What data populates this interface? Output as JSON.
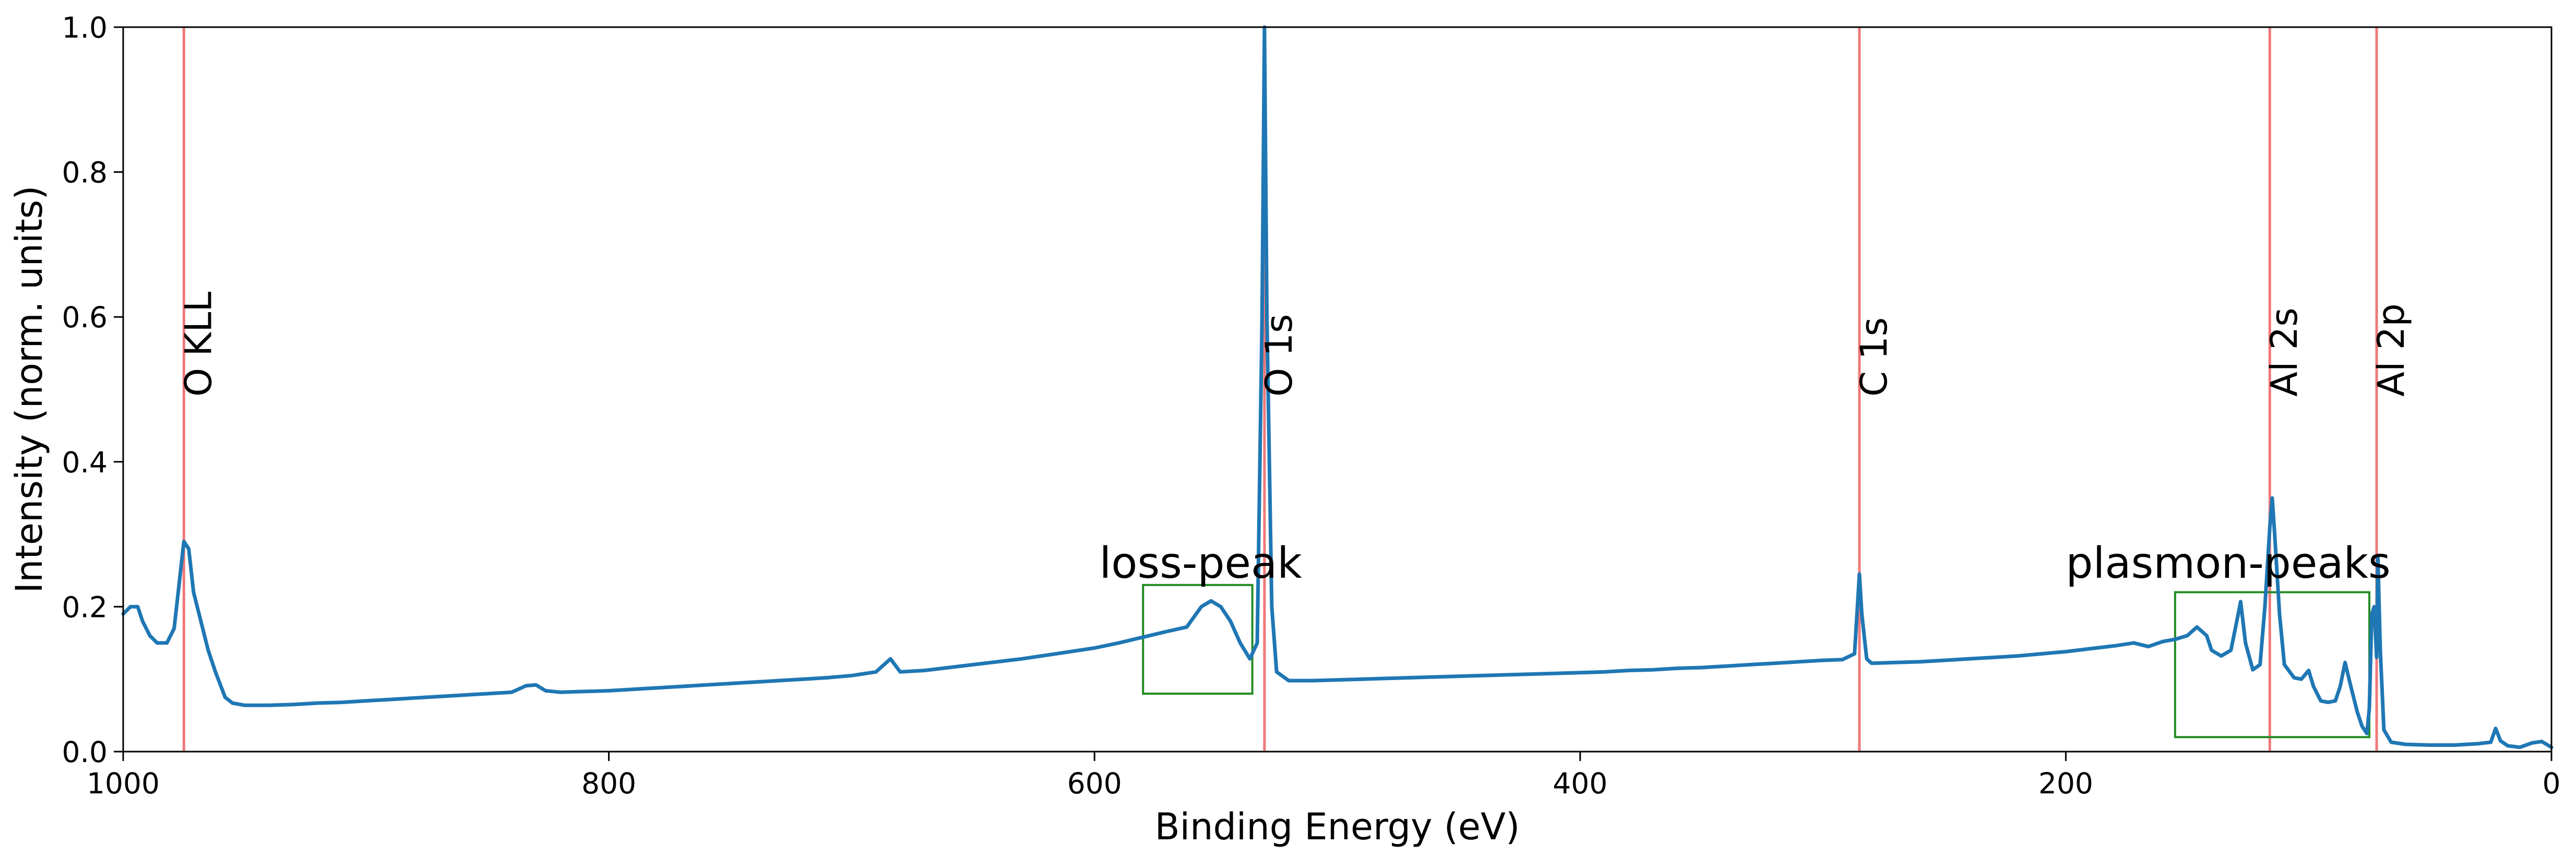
{
  "chart_data": {
    "type": "line",
    "title": "",
    "xlabel": "Binding Energy (eV)",
    "ylabel": "Intensity (norm. units)",
    "xlim": [
      1000,
      0
    ],
    "ylim": [
      0,
      1.0
    ],
    "x_reversed": true,
    "xticks": [
      1000,
      800,
      600,
      400,
      200,
      0
    ],
    "xtick_labels": [
      "1000",
      "800",
      "600",
      "400",
      "200",
      "0"
    ],
    "yticks": [
      0.0,
      0.2,
      0.4,
      0.6,
      0.8,
      1.0
    ],
    "ytick_labels": [
      "0.0",
      "0.2",
      "0.4",
      "0.6",
      "0.8",
      "1.0"
    ],
    "grid": false,
    "series": [
      {
        "color": "#1f77b4",
        "points": [
          [
            1000,
            0.19
          ],
          [
            997,
            0.2
          ],
          [
            994,
            0.2
          ],
          [
            992,
            0.18
          ],
          [
            989,
            0.16
          ],
          [
            986,
            0.15
          ],
          [
            982,
            0.15
          ],
          [
            979,
            0.17
          ],
          [
            977,
            0.23
          ],
          [
            975,
            0.29
          ],
          [
            973,
            0.28
          ],
          [
            971,
            0.22
          ],
          [
            968,
            0.18
          ],
          [
            965,
            0.14
          ],
          [
            962,
            0.11
          ],
          [
            958,
            0.075
          ],
          [
            955,
            0.067
          ],
          [
            950,
            0.064
          ],
          [
            940,
            0.064
          ],
          [
            930,
            0.065
          ],
          [
            920,
            0.067
          ],
          [
            910,
            0.068
          ],
          [
            900,
            0.07
          ],
          [
            890,
            0.072
          ],
          [
            880,
            0.074
          ],
          [
            870,
            0.076
          ],
          [
            860,
            0.078
          ],
          [
            850,
            0.08
          ],
          [
            840,
            0.082
          ],
          [
            834,
            0.091
          ],
          [
            830,
            0.092
          ],
          [
            826,
            0.084
          ],
          [
            820,
            0.082
          ],
          [
            810,
            0.083
          ],
          [
            800,
            0.084
          ],
          [
            790,
            0.086
          ],
          [
            780,
            0.088
          ],
          [
            770,
            0.09
          ],
          [
            760,
            0.092
          ],
          [
            750,
            0.094
          ],
          [
            740,
            0.096
          ],
          [
            730,
            0.098
          ],
          [
            720,
            0.1
          ],
          [
            710,
            0.102
          ],
          [
            700,
            0.105
          ],
          [
            690,
            0.11
          ],
          [
            684,
            0.128
          ],
          [
            680,
            0.11
          ],
          [
            670,
            0.112
          ],
          [
            660,
            0.116
          ],
          [
            650,
            0.12
          ],
          [
            640,
            0.124
          ],
          [
            630,
            0.128
          ],
          [
            620,
            0.133
          ],
          [
            610,
            0.138
          ],
          [
            600,
            0.143
          ],
          [
            590,
            0.15
          ],
          [
            580,
            0.158
          ],
          [
            570,
            0.166
          ],
          [
            562,
            0.172
          ],
          [
            556,
            0.2
          ],
          [
            552,
            0.208
          ],
          [
            548,
            0.2
          ],
          [
            544,
            0.18
          ],
          [
            540,
            0.15
          ],
          [
            536,
            0.128
          ],
          [
            533,
            0.15
          ],
          [
            531,
            0.6
          ],
          [
            530,
            1.0
          ],
          [
            529,
            0.6
          ],
          [
            527,
            0.2
          ],
          [
            525,
            0.11
          ],
          [
            520,
            0.098
          ],
          [
            510,
            0.098
          ],
          [
            500,
            0.099
          ],
          [
            490,
            0.1
          ],
          [
            480,
            0.101
          ],
          [
            470,
            0.102
          ],
          [
            460,
            0.103
          ],
          [
            450,
            0.104
          ],
          [
            440,
            0.105
          ],
          [
            430,
            0.106
          ],
          [
            420,
            0.107
          ],
          [
            410,
            0.108
          ],
          [
            400,
            0.109
          ],
          [
            390,
            0.11
          ],
          [
            380,
            0.112
          ],
          [
            370,
            0.113
          ],
          [
            360,
            0.115
          ],
          [
            350,
            0.116
          ],
          [
            340,
            0.118
          ],
          [
            330,
            0.12
          ],
          [
            320,
            0.122
          ],
          [
            310,
            0.124
          ],
          [
            300,
            0.126
          ],
          [
            292,
            0.127
          ],
          [
            287,
            0.135
          ],
          [
            285,
            0.245
          ],
          [
            284,
            0.19
          ],
          [
            282,
            0.128
          ],
          [
            280,
            0.122
          ],
          [
            270,
            0.123
          ],
          [
            260,
            0.124
          ],
          [
            250,
            0.126
          ],
          [
            240,
            0.128
          ],
          [
            230,
            0.13
          ],
          [
            220,
            0.132
          ],
          [
            210,
            0.135
          ],
          [
            200,
            0.138
          ],
          [
            190,
            0.142
          ],
          [
            180,
            0.146
          ],
          [
            172,
            0.15
          ],
          [
            166,
            0.145
          ],
          [
            160,
            0.152
          ],
          [
            155,
            0.155
          ],
          [
            150,
            0.16
          ],
          [
            146,
            0.172
          ],
          [
            142,
            0.16
          ],
          [
            140,
            0.14
          ],
          [
            136,
            0.132
          ],
          [
            132,
            0.14
          ],
          [
            129,
            0.19
          ],
          [
            128,
            0.207
          ],
          [
            126,
            0.15
          ],
          [
            123,
            0.113
          ],
          [
            120,
            0.12
          ],
          [
            118,
            0.2
          ],
          [
            116,
            0.31
          ],
          [
            115,
            0.35
          ],
          [
            114,
            0.3
          ],
          [
            112,
            0.19
          ],
          [
            110,
            0.12
          ],
          [
            106,
            0.102
          ],
          [
            103,
            0.1
          ],
          [
            100,
            0.112
          ],
          [
            98,
            0.09
          ],
          [
            95,
            0.07
          ],
          [
            92,
            0.068
          ],
          [
            89,
            0.07
          ],
          [
            87,
            0.09
          ],
          [
            85,
            0.123
          ],
          [
            83,
            0.095
          ],
          [
            80,
            0.055
          ],
          [
            78,
            0.035
          ],
          [
            76,
            0.025
          ],
          [
            75,
            0.06
          ],
          [
            74,
            0.19
          ],
          [
            73,
            0.2
          ],
          [
            72,
            0.13
          ],
          [
            71.5,
            0.27
          ],
          [
            70.5,
            0.14
          ],
          [
            69,
            0.03
          ],
          [
            66,
            0.013
          ],
          [
            60,
            0.01
          ],
          [
            50,
            0.009
          ],
          [
            40,
            0.009
          ],
          [
            30,
            0.011
          ],
          [
            25,
            0.013
          ],
          [
            23,
            0.032
          ],
          [
            21,
            0.015
          ],
          [
            18,
            0.008
          ],
          [
            13,
            0.006
          ],
          [
            8,
            0.012
          ],
          [
            4,
            0.014
          ],
          [
            1,
            0.008
          ],
          [
            0,
            0.006
          ]
        ]
      }
    ],
    "reference_lines": [
      {
        "x": 975,
        "label": "O KLL"
      },
      {
        "x": 530,
        "label": "O 1s"
      },
      {
        "x": 285,
        "label": "C 1s"
      },
      {
        "x": 116,
        "label": "Al 2s"
      },
      {
        "x": 72,
        "label": "Al 2p"
      }
    ],
    "reference_line_color": "#f07878",
    "reference_label_y": 0.49,
    "annotations": [
      {
        "text": "loss-peak",
        "x": 598,
        "y": 0.24
      },
      {
        "text": "plasmon-peaks",
        "x": 200,
        "y": 0.24
      }
    ],
    "boxes": [
      {
        "x0": 580,
        "x1": 535,
        "y0": 0.08,
        "y1": 0.23
      },
      {
        "x0": 155,
        "x1": 75,
        "y0": 0.02,
        "y1": 0.22
      }
    ],
    "box_color": "#228b22"
  }
}
